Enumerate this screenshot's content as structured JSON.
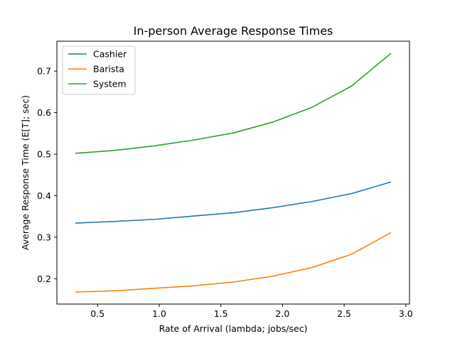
{
  "chart_data": {
    "type": "line",
    "title": "In-person Average Response Times",
    "xlabel": "Rate of Arrival (lambda; jobs/sec)",
    "ylabel": "Average Response Time (E[T]; sec)",
    "xlim": [
      0.17,
      3.03
    ],
    "ylim": [
      0.139,
      0.772
    ],
    "xticks": [
      0.5,
      1.0,
      1.5,
      2.0,
      2.5,
      3.0
    ],
    "xtick_labels": [
      "0.5",
      "1.0",
      "1.5",
      "2.0",
      "2.5",
      "3.0"
    ],
    "yticks": [
      0.2,
      0.3,
      0.4,
      0.5,
      0.6,
      0.7
    ],
    "ytick_labels": [
      "0.2",
      "0.3",
      "0.4",
      "0.5",
      "0.6",
      "0.7"
    ],
    "grid": false,
    "legend_position": "top-left",
    "x": [
      0.32,
      0.64,
      0.96,
      1.28,
      1.6,
      1.92,
      2.24,
      2.56,
      2.88
    ],
    "series": [
      {
        "name": "Cashier",
        "color": "#1f77b4",
        "values": [
          0.334,
          0.338,
          0.343,
          0.351,
          0.359,
          0.371,
          0.386,
          0.405,
          0.433
        ]
      },
      {
        "name": "Barista",
        "color": "#ff7f0e",
        "values": [
          0.168,
          0.171,
          0.177,
          0.183,
          0.192,
          0.206,
          0.227,
          0.259,
          0.311
        ]
      },
      {
        "name": "System",
        "color": "#2ca02c",
        "values": [
          0.502,
          0.509,
          0.52,
          0.534,
          0.551,
          0.577,
          0.613,
          0.664,
          0.743
        ]
      }
    ]
  }
}
